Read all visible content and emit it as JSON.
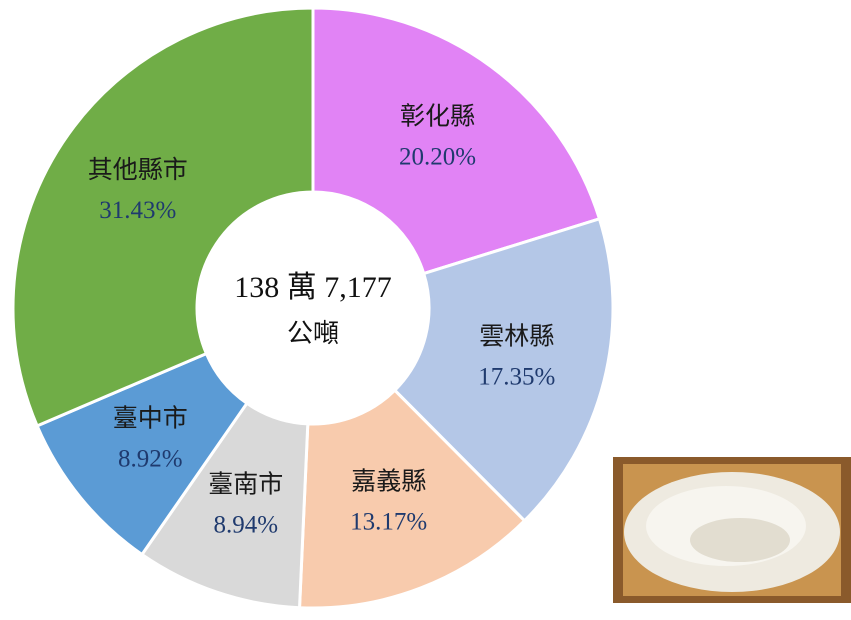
{
  "chart_data": {
    "type": "donut",
    "categories": [
      "彰化縣",
      "雲林縣",
      "嘉義縣",
      "臺南市",
      "臺中市",
      "其他縣市"
    ],
    "values": [
      20.2,
      17.35,
      13.17,
      8.94,
      8.92,
      31.43
    ],
    "value_labels": [
      "20.20%",
      "17.35%",
      "13.17%",
      "8.94%",
      "8.92%",
      "31.43%"
    ],
    "colors": [
      "#e183f5",
      "#b4c7e7",
      "#f8cbad",
      "#d9d9d9",
      "#5b9bd5",
      "#70ad47"
    ],
    "annotations": [
      "138 萬 7,177",
      "公噸"
    ]
  }
}
